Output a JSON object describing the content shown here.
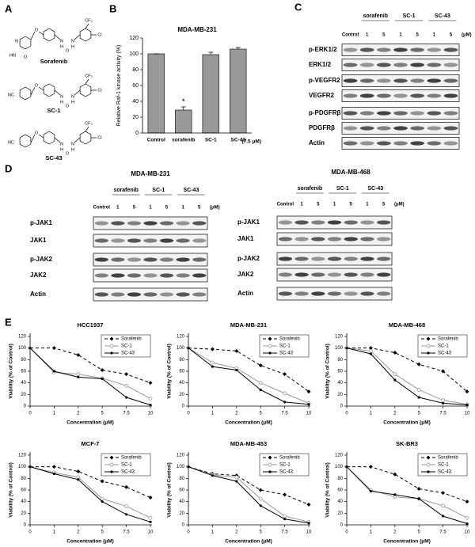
{
  "panel_labels": [
    "A",
    "B",
    "C",
    "D",
    "E"
  ],
  "compounds": [
    {
      "name": "Sorafenib",
      "atoms": [
        "CF₃",
        "Cl",
        "O",
        "N",
        "HN",
        "O",
        "N",
        "H",
        "N",
        "H",
        "O"
      ]
    },
    {
      "name": "SC-1",
      "atoms": [
        "CF₃",
        "Cl",
        "NC",
        "O",
        "N",
        "H",
        "N",
        "H",
        "O"
      ]
    },
    {
      "name": "SC-43",
      "atoms": [
        "CF₃",
        "Cl",
        "NC",
        "O",
        "N",
        "H",
        "N",
        "H",
        "O"
      ]
    }
  ],
  "blots": [
    {
      "groups": [
        "sorafenib",
        "SC-1",
        "SC-43"
      ],
      "lanes": [
        "Control",
        "1",
        "5",
        "1",
        "5",
        "1",
        "5"
      ],
      "unit": "(μM)",
      "rows": [
        "p-ERK1/2",
        "ERK1/2",
        "p-VEGFR2",
        "VEGFR2",
        "p-PDGFRβ",
        "PDGFRβ",
        "Actin"
      ]
    },
    {
      "title": "MDA-MB-231",
      "groups": [
        "sorafenib",
        "SC-1",
        "SC-43"
      ],
      "lanes": [
        "Control",
        "1",
        "5",
        "1",
        "5",
        "1",
        "5"
      ],
      "unit": "(μM)",
      "rows": [
        "p-JAK1",
        "JAK1",
        "p-JAK2",
        "JAK2",
        "Actin"
      ]
    },
    {
      "title": "MDA-MB-468",
      "groups": [
        "sorafenib",
        "SC-1",
        "SC-43"
      ],
      "lanes": [
        "Control",
        "1",
        "5",
        "1",
        "5",
        "1",
        "5"
      ],
      "unit": "(μM)",
      "rows": [
        "p-JAK1",
        "JAK1",
        "p-JAK2",
        "JAK2",
        "Actin"
      ]
    }
  ],
  "chart_data": [
    {
      "type": "bar",
      "title": "MDA-MB-231",
      "y_label": "Relative Raf-1 kinase activity (%)",
      "categories": [
        "Control",
        "sorafenib",
        "SC-1",
        "SC-43"
      ],
      "values": [
        100,
        29,
        99,
        106
      ],
      "errors": [
        0,
        4,
        3,
        2
      ],
      "color": "#999999",
      "ylim": [
        0,
        120
      ],
      "yticks": [
        0,
        20,
        40,
        60,
        80,
        100,
        120
      ],
      "annotations": [
        "*",
        "(7.5 μM)"
      ]
    },
    {
      "type": "line",
      "title": "HCC1937",
      "x_label": "Concentration (μM)",
      "y_label": "Viability (% of Control)",
      "categories": [
        "0",
        "1",
        "2",
        "5",
        "7.5",
        "10"
      ],
      "ylim": [
        0,
        120
      ],
      "yticks": [
        0,
        20,
        40,
        60,
        80,
        100,
        120
      ],
      "legend": "upper right",
      "series": [
        {
          "name": "Sorafenib",
          "color": "#000000",
          "dash": "4 3",
          "marker": "diamond",
          "values": [
            100,
            100,
            88,
            62,
            55,
            40
          ]
        },
        {
          "name": "SC-1",
          "color": "#999999",
          "dash": "none",
          "marker": "circle",
          "values": [
            100,
            58,
            55,
            48,
            35,
            13
          ]
        },
        {
          "name": "SC-43",
          "color": "#000000",
          "dash": "none",
          "marker": "dot",
          "values": [
            100,
            60,
            50,
            47,
            15,
            2
          ]
        }
      ]
    },
    {
      "type": "line",
      "title": "MDA-MB-231",
      "x_label": "Concentration (μM)",
      "y_label": "Viability (% of Control)",
      "categories": [
        "0",
        "1",
        "2",
        "5",
        "7.5",
        "10"
      ],
      "ylim": [
        0,
        120
      ],
      "yticks": [
        0,
        20,
        40,
        60,
        80,
        100,
        120
      ],
      "legend": "upper right",
      "series": [
        {
          "name": "Sorafenib",
          "color": "#000000",
          "dash": "4 3",
          "marker": "diamond",
          "values": [
            100,
            98,
            95,
            70,
            55,
            25
          ]
        },
        {
          "name": "SC-1",
          "color": "#999999",
          "dash": "none",
          "marker": "circle",
          "values": [
            100,
            75,
            65,
            40,
            22,
            5
          ]
        },
        {
          "name": "SC-43",
          "color": "#000000",
          "dash": "none",
          "marker": "dot",
          "values": [
            100,
            68,
            62,
            28,
            7,
            3
          ]
        }
      ]
    },
    {
      "type": "line",
      "title": "MDA-MB-468",
      "x_label": "Concentration (μM)",
      "y_label": "Viability (% of Control)",
      "categories": [
        "0",
        "1",
        "2",
        "5",
        "7.5",
        "10"
      ],
      "ylim": [
        0,
        120
      ],
      "yticks": [
        0,
        20,
        40,
        60,
        80,
        100,
        120
      ],
      "legend": "upper right",
      "series": [
        {
          "name": "Sorafenib",
          "color": "#000000",
          "dash": "4 3",
          "marker": "diamond",
          "values": [
            100,
            100,
            92,
            72,
            60,
            25
          ]
        },
        {
          "name": "SC-1",
          "color": "#999999",
          "dash": "none",
          "marker": "circle",
          "values": [
            100,
            95,
            55,
            28,
            10,
            3
          ]
        },
        {
          "name": "SC-43",
          "color": "#000000",
          "dash": "none",
          "marker": "dot",
          "values": [
            100,
            90,
            45,
            15,
            5,
            2
          ]
        }
      ]
    },
    {
      "type": "line",
      "title": "MCF-7",
      "x_label": "Concentration (μM)",
      "y_label": "Viability (% of Control)",
      "categories": [
        "0",
        "1",
        "2",
        "5",
        "7.5",
        "10"
      ],
      "ylim": [
        0,
        120
      ],
      "yticks": [
        0,
        20,
        40,
        60,
        80,
        100,
        120
      ],
      "legend": "upper right",
      "series": [
        {
          "name": "Sorafenib",
          "color": "#000000",
          "dash": "4 3",
          "marker": "diamond",
          "values": [
            100,
            100,
            92,
            75,
            65,
            47
          ]
        },
        {
          "name": "SC-1",
          "color": "#999999",
          "dash": "none",
          "marker": "circle",
          "values": [
            100,
            90,
            82,
            45,
            32,
            12
          ]
        },
        {
          "name": "SC-43",
          "color": "#000000",
          "dash": "none",
          "marker": "dot",
          "values": [
            100,
            88,
            78,
            40,
            18,
            5
          ]
        }
      ]
    },
    {
      "type": "line",
      "title": "MDA-MB-453",
      "x_label": "Concentration (μM)",
      "y_label": "Viability (% of Control)",
      "categories": [
        "0",
        "1",
        "2",
        "5",
        "7.5",
        "10"
      ],
      "ylim": [
        0,
        120
      ],
      "yticks": [
        0,
        20,
        40,
        60,
        80,
        100,
        120
      ],
      "legend": "upper right",
      "series": [
        {
          "name": "Sorafenib",
          "color": "#000000",
          "dash": "4 3",
          "marker": "diamond",
          "values": [
            100,
            88,
            85,
            60,
            52,
            35
          ]
        },
        {
          "name": "SC-1",
          "color": "#999999",
          "dash": "none",
          "marker": "circle",
          "values": [
            100,
            86,
            82,
            45,
            15,
            5
          ]
        },
        {
          "name": "SC-43",
          "color": "#000000",
          "dash": "none",
          "marker": "dot",
          "values": [
            100,
            85,
            75,
            33,
            10,
            3
          ]
        }
      ]
    },
    {
      "type": "line",
      "title": "SK-BR3",
      "x_label": "Concentration (μM)",
      "y_label": "Viability (% of Control)",
      "categories": [
        "0",
        "1",
        "2",
        "5",
        "7.5",
        "10"
      ],
      "ylim": [
        0,
        120
      ],
      "yticks": [
        0,
        20,
        40,
        60,
        80,
        100,
        120
      ],
      "legend": "upper right",
      "series": [
        {
          "name": "Sorafenib",
          "color": "#000000",
          "dash": "4 3",
          "marker": "diamond",
          "values": [
            100,
            100,
            87,
            62,
            55,
            40
          ]
        },
        {
          "name": "SC-1",
          "color": "#999999",
          "dash": "none",
          "marker": "circle",
          "values": [
            100,
            60,
            48,
            45,
            33,
            12
          ]
        },
        {
          "name": "SC-43",
          "color": "#000000",
          "dash": "none",
          "marker": "dot",
          "values": [
            100,
            58,
            52,
            45,
            15,
            2
          ]
        }
      ]
    }
  ]
}
